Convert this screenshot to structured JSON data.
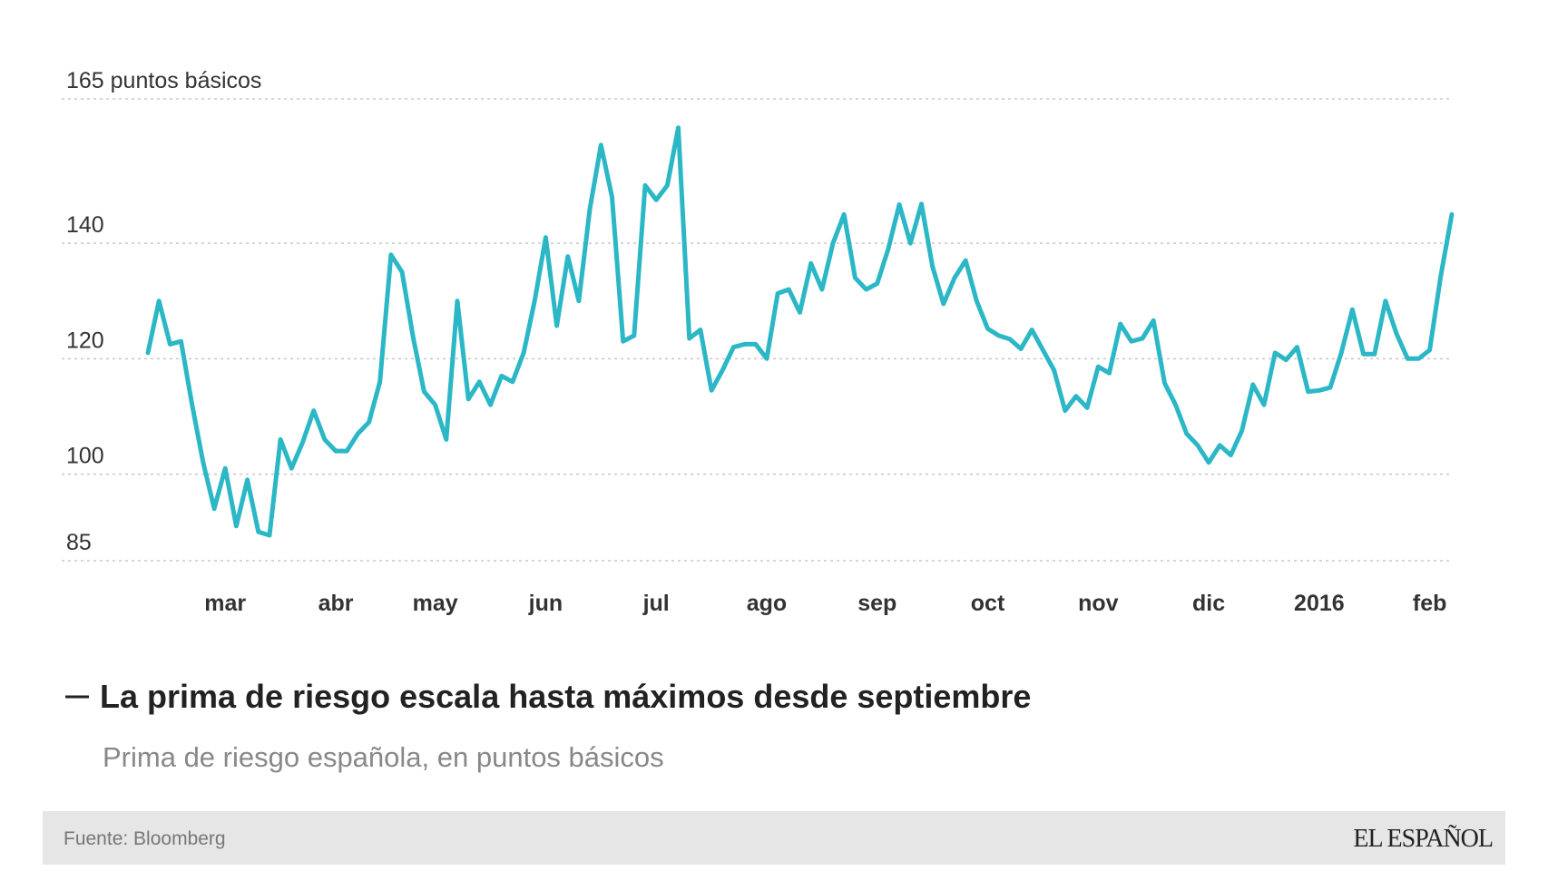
{
  "chart_data": {
    "type": "line",
    "title": "La prima de riesgo escala hasta máximos desde septiembre",
    "subtitle": "Prima de riesgo española, en puntos básicos",
    "source": "Fuente: Bloomberg",
    "brand": "EL ESPAÑOL",
    "categories": [
      null,
      null,
      null,
      null,
      null,
      null,
      null,
      "mar",
      null,
      null,
      null,
      null,
      null,
      null,
      null,
      null,
      null,
      "abr",
      null,
      null,
      null,
      null,
      null,
      null,
      null,
      null,
      "may",
      null,
      null,
      null,
      null,
      null,
      null,
      null,
      null,
      null,
      "jun",
      null,
      null,
      null,
      null,
      null,
      null,
      null,
      null,
      null,
      "jul",
      null,
      null,
      null,
      null,
      null,
      null,
      null,
      null,
      null,
      "ago",
      null,
      null,
      null,
      null,
      null,
      null,
      null,
      null,
      null,
      "sep",
      null,
      null,
      null,
      null,
      null,
      null,
      null,
      null,
      null,
      "oct",
      null,
      null,
      null,
      null,
      null,
      null,
      null,
      null,
      null,
      "nov",
      null,
      null,
      null,
      null,
      null,
      null,
      null,
      null,
      null,
      "dic",
      null,
      null,
      null,
      null,
      null,
      null,
      null,
      null,
      null,
      "2016",
      null,
      null,
      null,
      null,
      null,
      null,
      null,
      null,
      null,
      "feb",
      null,
      null
    ],
    "series": [
      {
        "color": "#2bb7c6",
        "values": [
          121,
          130,
          122.5,
          123,
          112,
          102,
          94,
          101,
          91,
          99,
          90,
          89.4,
          106,
          101,
          105.5,
          111,
          106,
          104,
          104,
          107,
          109,
          116,
          138,
          135,
          123.7,
          114.3,
          112,
          106,
          130,
          113,
          116,
          112,
          117,
          116,
          121,
          130,
          141,
          125.7,
          137.7,
          130,
          146,
          157,
          148,
          123,
          124,
          150,
          147.5,
          150,
          160,
          123.5,
          125,
          114.5,
          118,
          122,
          122.5,
          122.5,
          120,
          131.3,
          132,
          128,
          136.5,
          132,
          140,
          145,
          134,
          132,
          133,
          139,
          146.7,
          140,
          146.8,
          136,
          129.5,
          134,
          137,
          130,
          125.2,
          124,
          123.4,
          121.7,
          125,
          121.5,
          118,
          111,
          113.5,
          111.5,
          118.6,
          117.5,
          126,
          123,
          123.5,
          126.6,
          115.8,
          112,
          107,
          105,
          102,
          105,
          103.3,
          107.5,
          115.5,
          112,
          121,
          119.8,
          122,
          114.3,
          114.5,
          115,
          121,
          128.5,
          120.8,
          120.8,
          130,
          124.3,
          120,
          120,
          121.5,
          134.3,
          145
        ]
      }
    ],
    "ylim": [
      85,
      165
    ],
    "yticks": [
      85,
      100,
      120,
      140,
      {
        "value": 165,
        "label": "165 puntos básicos"
      }
    ],
    "grid": true
  }
}
